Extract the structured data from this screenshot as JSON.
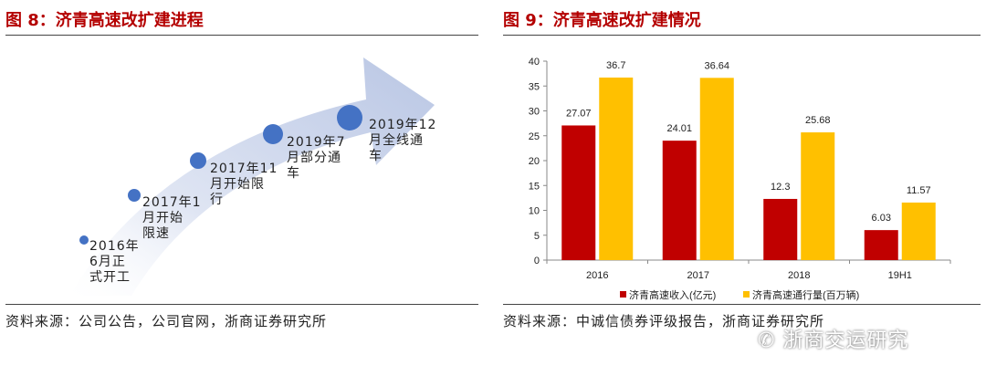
{
  "left": {
    "title": "图 8：济青高速改扩建进程",
    "source": "资料来源：公司公告，公司官网，浙商证券研究所",
    "milestones": [
      {
        "label": "2016年\n6月正\n式开工"
      },
      {
        "label": "2017年1\n月开始\n限速"
      },
      {
        "label": "2017年11\n月开始限\n行"
      },
      {
        "label": "2019年7\n月部分通\n车"
      },
      {
        "label": "2019年12\n月全线通\n车"
      }
    ],
    "colors": {
      "dot": "#4472c4",
      "arrow": "#c9d3ea",
      "title": "#b40000"
    }
  },
  "right": {
    "title": "图 9：济青高速改扩建情况",
    "source": "资料来源：中诚信债券评级报告，浙商证券研究所"
  },
  "chart_data": {
    "type": "bar",
    "categories": [
      "2016",
      "2017",
      "2018",
      "19H1"
    ],
    "series": [
      {
        "name": "济青高速收入(亿元)",
        "values": [
          27.07,
          24.01,
          12.3,
          6.03
        ],
        "color": "#c00000"
      },
      {
        "name": "济青高速通行量(百万辆)",
        "values": [
          36.7,
          36.64,
          25.68,
          11.57
        ],
        "color": "#ffc000"
      }
    ],
    "ylim": [
      0,
      40
    ],
    "yticks": [
      "0",
      "5",
      "10",
      "15",
      "20",
      "25",
      "30",
      "35",
      "40"
    ],
    "data_labels": [
      [
        "27.07",
        "24.01",
        "12.3",
        "6.03"
      ],
      [
        "36.7",
        "36.64",
        "25.68",
        "11.57"
      ]
    ],
    "grid": false,
    "legend_position": "bottom"
  },
  "watermark": "浙商交运研究"
}
